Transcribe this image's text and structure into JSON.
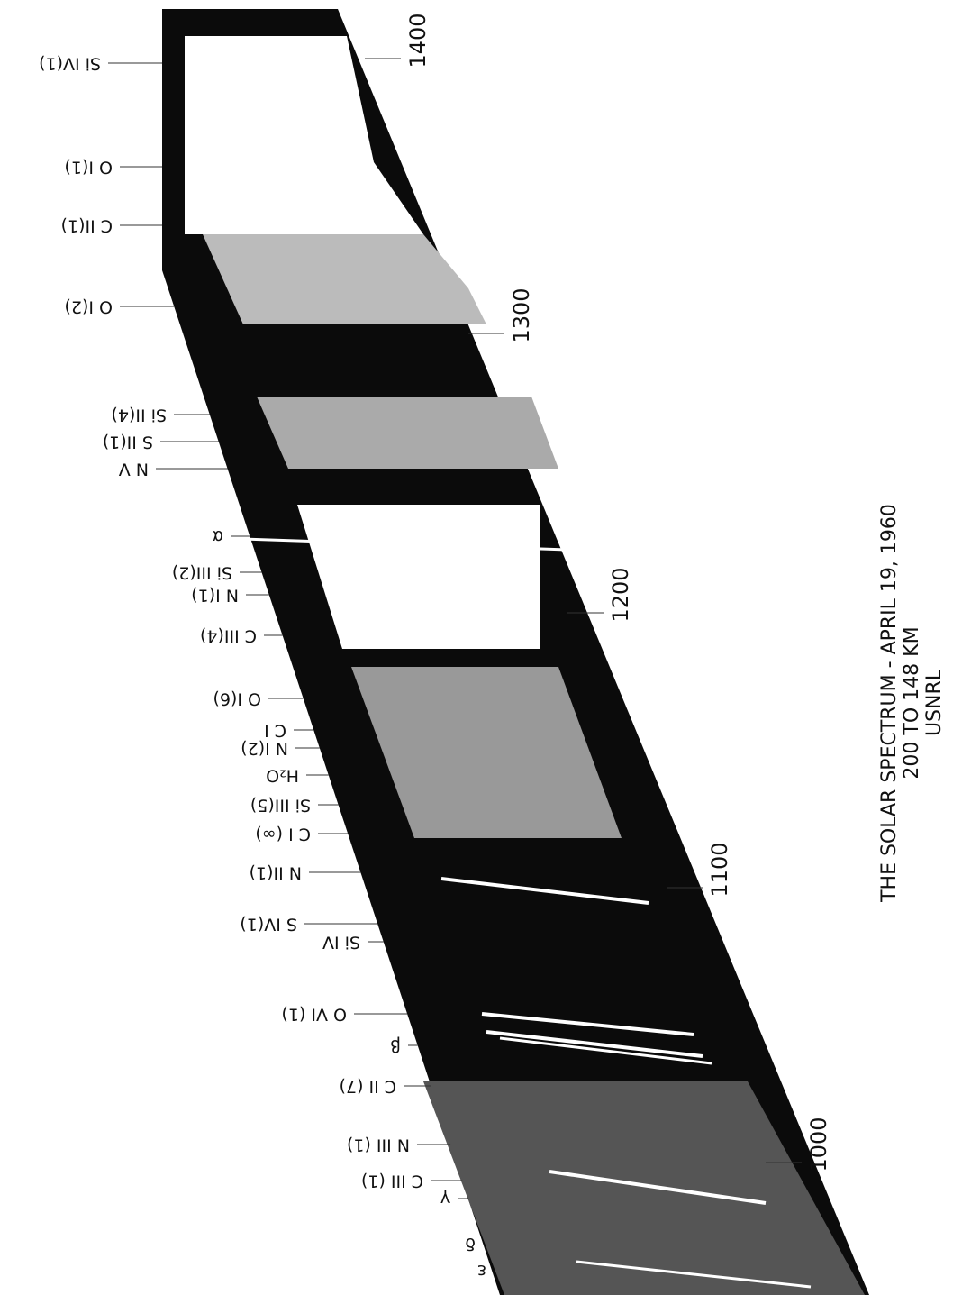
{
  "caption": [
    "THE SOLAR SPECTRUM - APRIL 19, 1960",
    "200 TO 148 KM",
    "USNRL"
  ],
  "wavelengths": [
    "1400",
    "1300",
    "1200",
    "1100",
    "1000"
  ],
  "lines": [
    "Si IV(1)",
    "O I(1)",
    "C II(1)",
    "O I(2)",
    "Si II(4)",
    "S II(1)",
    "N V",
    "α",
    "Si III(2)",
    "N I(1)",
    "C III(4)",
    "O I(6)",
    "C I",
    "N I(2)",
    "H₂O",
    "Si III(5)",
    "C I (∞)",
    "N II(1)",
    "S IV(1)",
    "Si IV",
    "O VI (1)",
    "β",
    "C II (7)",
    "N III (1)",
    "C III (1)",
    "γ",
    "δ",
    "ε"
  ]
}
